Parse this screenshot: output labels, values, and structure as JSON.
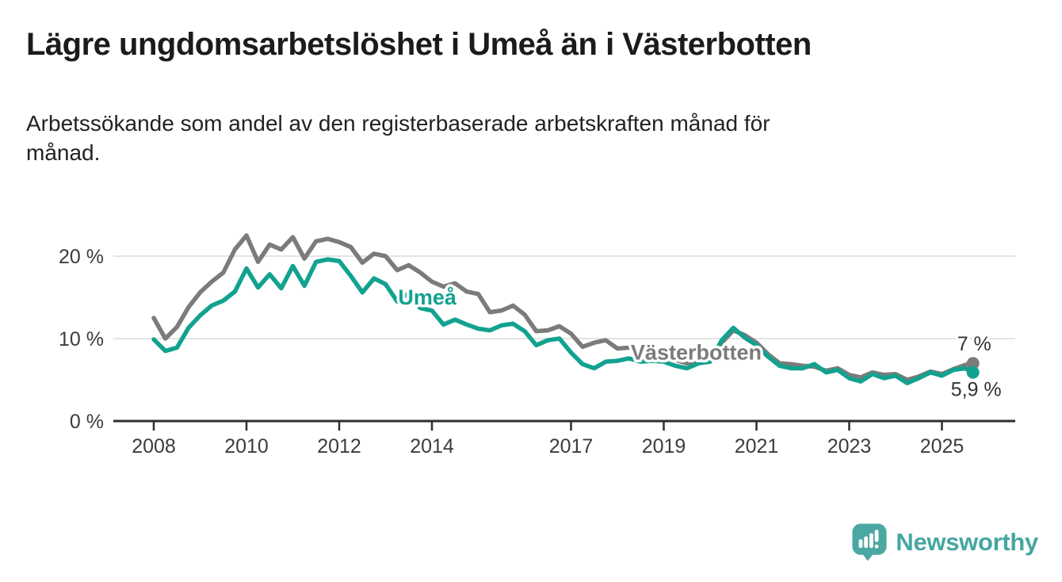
{
  "header": {
    "title": "Lägre ungdomsarbetslöshet i Umeå än i Västerbotten",
    "subtitle_line1": "Arbetssökande som andel av den registerbaserade arbetskraften månad för",
    "subtitle_line2": "månad."
  },
  "footer": {
    "brand": "Newsworthy",
    "logo_icon": "speech-bubble-bar-chart",
    "brand_color": "#46a6a1"
  },
  "chart_data": {
    "type": "line",
    "title": "Lägre ungdomsarbetslöshet i Umeå än i Västerbotten",
    "subtitle": "Arbetssökande som andel av den registerbaserade arbetskraften månad för månad.",
    "grid": "horizontal",
    "legend_position": "inline-labels",
    "x_axis": {
      "ticks": [
        2008,
        2010,
        2012,
        2014,
        2017,
        2019,
        2021,
        2023,
        2025
      ],
      "tick_labels": [
        "2008",
        "2010",
        "2012",
        "2014",
        "2017",
        "2019",
        "2021",
        "2023",
        "2025"
      ],
      "range": [
        2007.55,
        2025.95
      ]
    },
    "y_axis": {
      "unit": "%",
      "ticks": [
        0,
        10,
        20
      ],
      "tick_labels": [
        "0 %",
        "10 %",
        "20 %"
      ],
      "range": [
        0,
        23.7
      ]
    },
    "x": [
      2008,
      2008.25,
      2008.5,
      2008.75,
      2009,
      2009.25,
      2009.5,
      2009.75,
      2010,
      2010.25,
      2010.5,
      2010.75,
      2011,
      2011.25,
      2011.5,
      2011.75,
      2012,
      2012.25,
      2012.5,
      2012.75,
      2013,
      2013.25,
      2013.5,
      2013.75,
      2014,
      2014.25,
      2014.5,
      2014.75,
      2015,
      2015.25,
      2015.5,
      2015.75,
      2016,
      2016.25,
      2016.5,
      2016.75,
      2017,
      2017.25,
      2017.5,
      2017.75,
      2018,
      2018.25,
      2018.5,
      2018.75,
      2019,
      2019.25,
      2019.5,
      2019.75,
      2020,
      2020.25,
      2020.5,
      2020.75,
      2021,
      2021.25,
      2021.5,
      2021.75,
      2022,
      2022.25,
      2022.5,
      2022.75,
      2023,
      2023.25,
      2023.5,
      2023.75,
      2024,
      2024.25,
      2024.5,
      2024.75,
      2025,
      2025.25,
      2025.5,
      2025.67
    ],
    "series": [
      {
        "name": "Västerbotten",
        "color": "#7b7b7b",
        "end_label": "7 %",
        "values": [
          12.5,
          10.0,
          11.4,
          13.8,
          15.6,
          16.9,
          18.0,
          20.8,
          22.5,
          19.3,
          21.4,
          20.8,
          22.3,
          19.7,
          21.8,
          22.1,
          21.7,
          21.1,
          19.2,
          20.3,
          20.0,
          18.3,
          18.9,
          18.0,
          16.9,
          16.3,
          16.7,
          15.7,
          15.4,
          13.2,
          13.4,
          14.0,
          12.9,
          10.9,
          11.0,
          11.5,
          10.6,
          9.0,
          9.5,
          9.8,
          8.8,
          8.9,
          8.6,
          8.5,
          8.4,
          7.4,
          7.0,
          7.4,
          7.6,
          9.5,
          11.0,
          10.4,
          9.5,
          8.1,
          7.0,
          6.9,
          6.7,
          6.6,
          6.1,
          6.4,
          5.6,
          5.3,
          5.9,
          5.6,
          5.7,
          5.0,
          5.4,
          6.0,
          5.7,
          6.3,
          6.8,
          7.0
        ]
      },
      {
        "name": "Umeå",
        "color": "#12a28f",
        "end_label": "5,9 %",
        "values": [
          9.9,
          8.5,
          8.9,
          11.3,
          12.8,
          14.0,
          14.6,
          15.7,
          18.5,
          16.2,
          17.8,
          16.1,
          18.8,
          16.4,
          19.3,
          19.6,
          19.4,
          17.6,
          15.6,
          17.3,
          16.6,
          14.5,
          15.5,
          13.7,
          13.4,
          11.7,
          12.3,
          11.7,
          11.2,
          11.0,
          11.6,
          11.8,
          10.9,
          9.2,
          9.8,
          10.0,
          8.3,
          6.9,
          6.4,
          7.2,
          7.3,
          7.6,
          7.2,
          7.3,
          7.2,
          6.7,
          6.4,
          7.0,
          7.2,
          9.8,
          11.3,
          10.1,
          9.2,
          7.8,
          6.7,
          6.4,
          6.4,
          6.9,
          5.9,
          6.2,
          5.2,
          4.8,
          5.7,
          5.2,
          5.5,
          4.6,
          5.2,
          5.9,
          5.5,
          6.2,
          6.4,
          5.9
        ]
      }
    ],
    "series_labels": [
      {
        "text": "Umeå",
        "x": 2013.9,
        "y": 15.0,
        "color": "#12a28f"
      },
      {
        "text": "Västerbotten",
        "x": 2019.7,
        "y": 8.3,
        "color": "#7b7b7b"
      }
    ],
    "colors": {
      "axis": "#2e2e2e",
      "tick_text": "#3c3c3c",
      "gridline": "#dcdcdc",
      "end_label_text": "#333333"
    }
  }
}
